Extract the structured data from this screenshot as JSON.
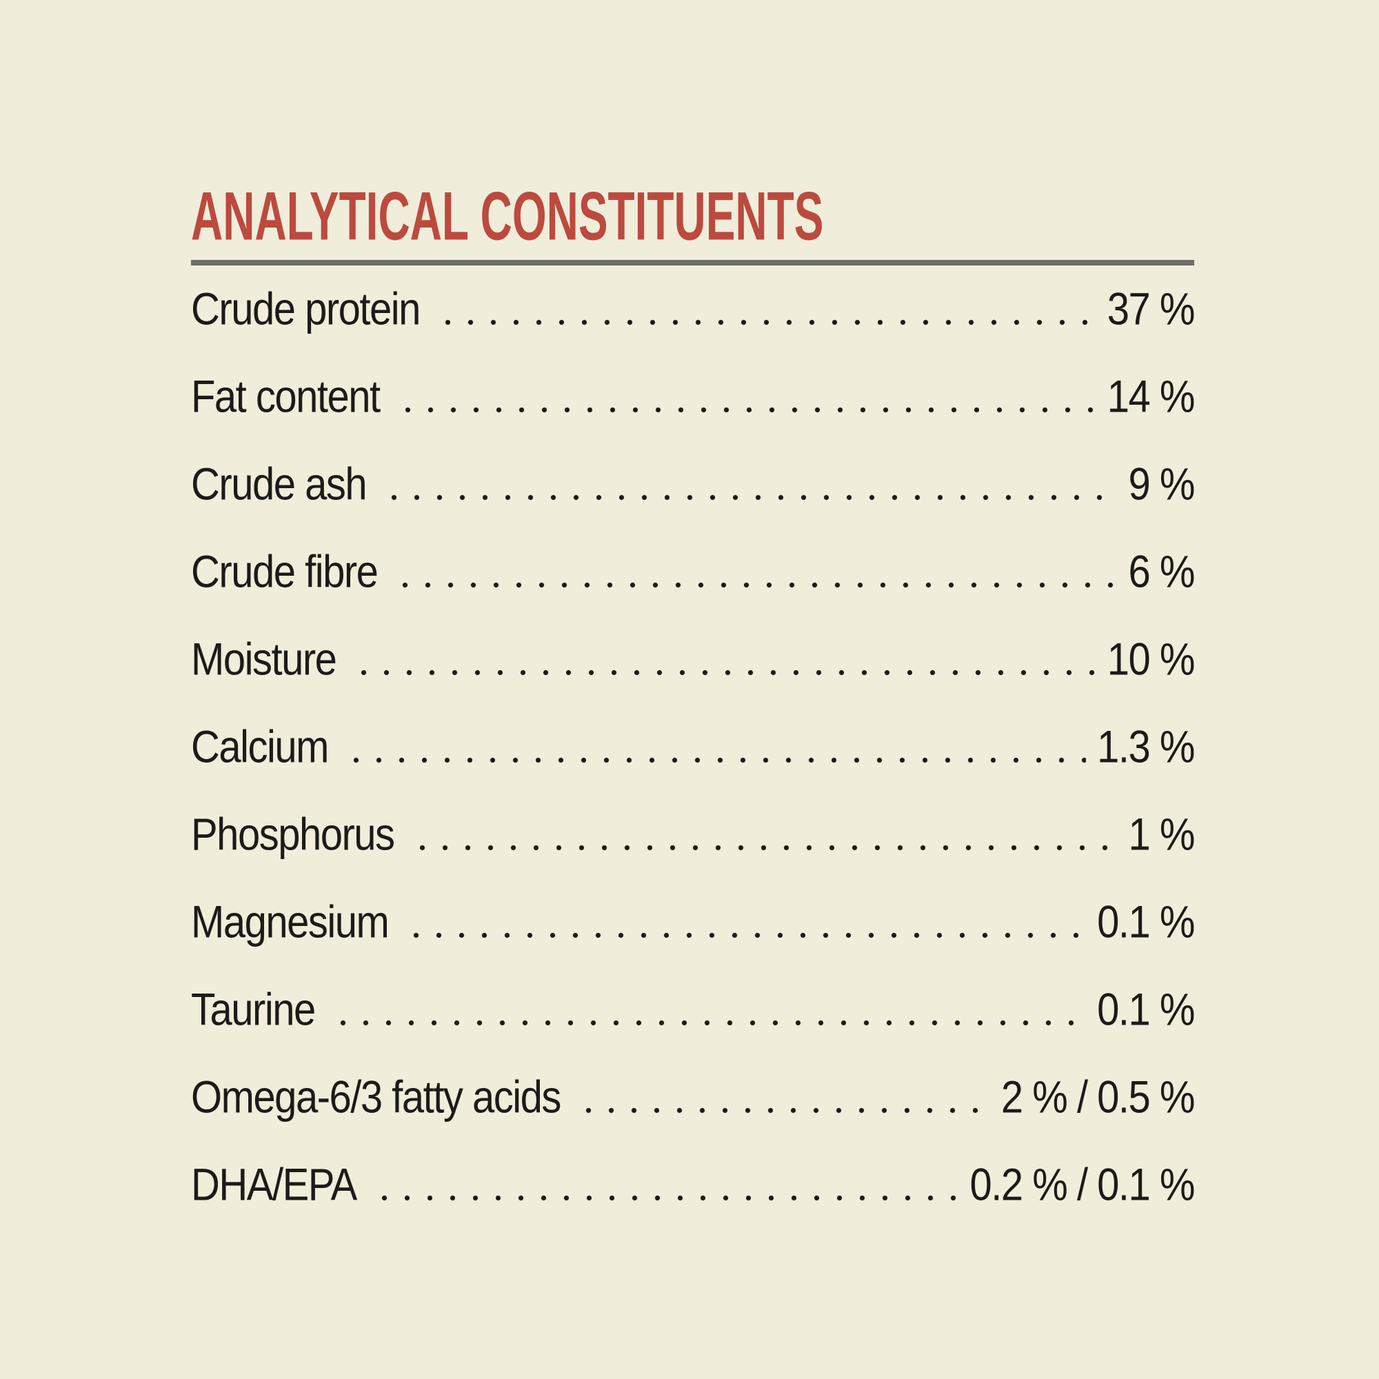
{
  "header": {
    "title": "ANALYTICAL CONSTITUENTS"
  },
  "colors": {
    "background": "#f0eddb",
    "accent": "#bc4a3e",
    "rule": "#6e6d66",
    "text": "#1c1b18"
  },
  "table": {
    "rows": [
      {
        "label": "Crude protein",
        "value": "37 %"
      },
      {
        "label": "Fat content",
        "value": "14 %"
      },
      {
        "label": "Crude ash",
        "value": "9 %"
      },
      {
        "label": "Crude fibre",
        "value": "6 %"
      },
      {
        "label": "Moisture",
        "value": "10 %"
      },
      {
        "label": "Calcium",
        "value": "1.3 %"
      },
      {
        "label": "Phosphorus",
        "value": "1 %"
      },
      {
        "label": "Magnesium",
        "value": "0.1 %"
      },
      {
        "label": "Taurine",
        "value": "0.1 %"
      },
      {
        "label": "Omega-6/3 fatty acids",
        "value": "2 % / 0.5 %"
      },
      {
        "label": "DHA/EPA",
        "value": "0.2 % / 0.1 %"
      }
    ]
  }
}
